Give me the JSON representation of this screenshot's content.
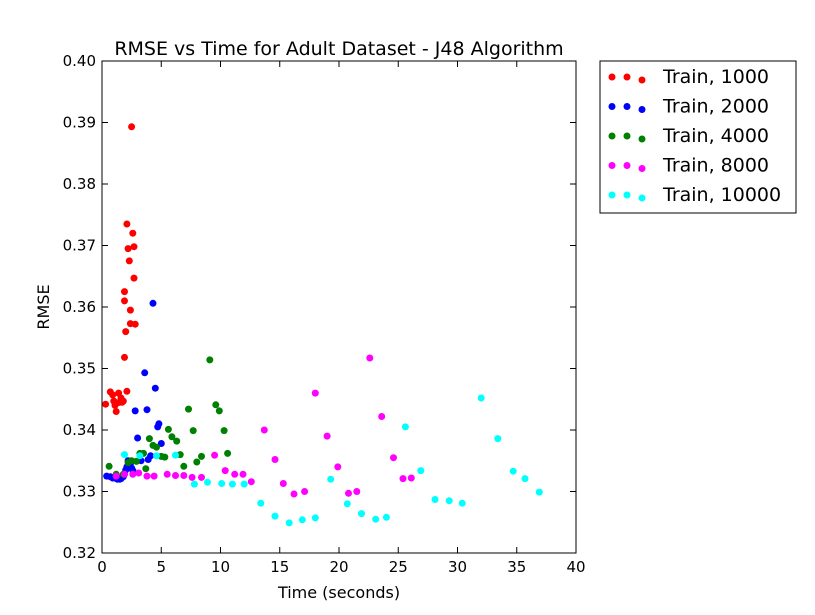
{
  "chart_data": {
    "type": "scatter",
    "title": "RMSE vs Time for Adult Dataset - J48 Algorithm",
    "xlabel": "Time (seconds)",
    "ylabel": "RMSE",
    "xlim": [
      0,
      40
    ],
    "ylim": [
      0.32,
      0.4
    ],
    "xticks": [
      "0",
      "5",
      "10",
      "15",
      "20",
      "25",
      "30",
      "35",
      "40"
    ],
    "yticks": [
      "0.32",
      "0.33",
      "0.34",
      "0.35",
      "0.36",
      "0.37",
      "0.38",
      "0.39",
      "0.40"
    ],
    "grid": false,
    "legend_position": "outside-top-right",
    "series": [
      {
        "name": "Train, 1000",
        "color": "#ff0000",
        "points": [
          [
            0.3,
            0.3442
          ],
          [
            0.7,
            0.3462
          ],
          [
            0.9,
            0.3457
          ],
          [
            1.0,
            0.3447
          ],
          [
            1.1,
            0.344
          ],
          [
            1.2,
            0.343
          ],
          [
            1.3,
            0.3444
          ],
          [
            1.4,
            0.346
          ],
          [
            1.5,
            0.3445
          ],
          [
            1.6,
            0.3452
          ],
          [
            1.7,
            0.3445
          ],
          [
            1.8,
            0.3447
          ],
          [
            1.9,
            0.361
          ],
          [
            1.9,
            0.3625
          ],
          [
            1.9,
            0.3518
          ],
          [
            2.0,
            0.356
          ],
          [
            2.1,
            0.3463
          ],
          [
            2.1,
            0.3735
          ],
          [
            2.2,
            0.3695
          ],
          [
            2.3,
            0.3675
          ],
          [
            2.4,
            0.3595
          ],
          [
            2.4,
            0.3573
          ],
          [
            2.5,
            0.3893
          ],
          [
            2.6,
            0.372
          ],
          [
            2.7,
            0.3698
          ],
          [
            2.7,
            0.3647
          ],
          [
            2.8,
            0.3572
          ]
        ]
      },
      {
        "name": "Train, 2000",
        "color": "#0000ff",
        "points": [
          [
            0.4,
            0.3325
          ],
          [
            0.7,
            0.3324
          ],
          [
            0.9,
            0.3322
          ],
          [
            1.1,
            0.3322
          ],
          [
            1.3,
            0.332
          ],
          [
            1.5,
            0.332
          ],
          [
            1.6,
            0.3321
          ],
          [
            1.7,
            0.3323
          ],
          [
            1.8,
            0.3324
          ],
          [
            1.9,
            0.3328
          ],
          [
            2.0,
            0.3335
          ],
          [
            2.1,
            0.334
          ],
          [
            2.2,
            0.3342
          ],
          [
            2.2,
            0.335
          ],
          [
            2.4,
            0.3345
          ],
          [
            2.5,
            0.3338
          ],
          [
            2.6,
            0.3334
          ],
          [
            2.8,
            0.3431
          ],
          [
            3.0,
            0.3387
          ],
          [
            3.3,
            0.335
          ],
          [
            3.6,
            0.3493
          ],
          [
            3.8,
            0.3433
          ],
          [
            3.9,
            0.3352
          ],
          [
            4.1,
            0.3358
          ],
          [
            4.3,
            0.3606
          ],
          [
            4.5,
            0.3468
          ],
          [
            4.7,
            0.3405
          ],
          [
            4.8,
            0.341
          ],
          [
            5.0,
            0.3378
          ]
        ]
      },
      {
        "name": "Train, 4000",
        "color": "#008000",
        "points": [
          [
            0.6,
            0.3341
          ],
          [
            1.2,
            0.3328
          ],
          [
            1.8,
            0.3328
          ],
          [
            2.2,
            0.3347
          ],
          [
            2.5,
            0.335
          ],
          [
            2.9,
            0.3349
          ],
          [
            3.2,
            0.3362
          ],
          [
            3.5,
            0.3362
          ],
          [
            3.7,
            0.3337
          ],
          [
            4.0,
            0.3386
          ],
          [
            4.3,
            0.3375
          ],
          [
            4.6,
            0.3372
          ],
          [
            5.0,
            0.3357
          ],
          [
            5.3,
            0.3356
          ],
          [
            5.6,
            0.3401
          ],
          [
            5.9,
            0.3389
          ],
          [
            6.3,
            0.3382
          ],
          [
            6.6,
            0.336
          ],
          [
            6.9,
            0.3341
          ],
          [
            7.3,
            0.3434
          ],
          [
            7.7,
            0.3399
          ],
          [
            8.0,
            0.3348
          ],
          [
            8.4,
            0.3357
          ],
          [
            9.1,
            0.3514
          ],
          [
            9.6,
            0.3441
          ],
          [
            9.9,
            0.3431
          ],
          [
            10.3,
            0.3399
          ],
          [
            10.6,
            0.3362
          ]
        ]
      },
      {
        "name": "Train, 8000",
        "color": "#ff00ff",
        "points": [
          [
            1.2,
            0.3325
          ],
          [
            1.9,
            0.3328
          ],
          [
            2.6,
            0.3328
          ],
          [
            3.1,
            0.333
          ],
          [
            3.8,
            0.3325
          ],
          [
            4.4,
            0.3325
          ],
          [
            5.5,
            0.3328
          ],
          [
            6.2,
            0.3326
          ],
          [
            6.9,
            0.3326
          ],
          [
            7.6,
            0.3323
          ],
          [
            8.4,
            0.3323
          ],
          [
            9.5,
            0.3359
          ],
          [
            10.4,
            0.3334
          ],
          [
            11.2,
            0.3328
          ],
          [
            11.9,
            0.3328
          ],
          [
            12.6,
            0.3316
          ],
          [
            13.7,
            0.34
          ],
          [
            14.6,
            0.3352
          ],
          [
            15.3,
            0.3313
          ],
          [
            16.2,
            0.3296
          ],
          [
            17.1,
            0.33
          ],
          [
            18.0,
            0.346
          ],
          [
            19.0,
            0.339
          ],
          [
            19.9,
            0.334
          ],
          [
            20.8,
            0.3297
          ],
          [
            21.5,
            0.33
          ],
          [
            22.6,
            0.3517
          ],
          [
            23.6,
            0.3422
          ],
          [
            24.6,
            0.3355
          ],
          [
            25.4,
            0.3321
          ],
          [
            26.1,
            0.3322
          ]
        ]
      },
      {
        "name": "Train, 10000",
        "color": "#00ffff",
        "points": [
          [
            1.9,
            0.336
          ],
          [
            3.2,
            0.3358
          ],
          [
            4.6,
            0.3358
          ],
          [
            6.2,
            0.3359
          ],
          [
            7.8,
            0.3312
          ],
          [
            8.9,
            0.3315
          ],
          [
            10.1,
            0.3313
          ],
          [
            11.0,
            0.3312
          ],
          [
            12.0,
            0.3312
          ],
          [
            13.4,
            0.3281
          ],
          [
            14.6,
            0.326
          ],
          [
            15.8,
            0.3249
          ],
          [
            16.9,
            0.3254
          ],
          [
            18.0,
            0.3257
          ],
          [
            19.3,
            0.332
          ],
          [
            20.7,
            0.328
          ],
          [
            21.9,
            0.3264
          ],
          [
            23.1,
            0.3255
          ],
          [
            24.0,
            0.3258
          ],
          [
            25.6,
            0.3405
          ],
          [
            26.9,
            0.3334
          ],
          [
            28.1,
            0.3287
          ],
          [
            29.3,
            0.3285
          ],
          [
            30.4,
            0.3281
          ],
          [
            32.0,
            0.3452
          ],
          [
            33.4,
            0.3386
          ],
          [
            34.7,
            0.3333
          ],
          [
            35.7,
            0.3321
          ],
          [
            36.9,
            0.3299
          ]
        ]
      }
    ]
  }
}
